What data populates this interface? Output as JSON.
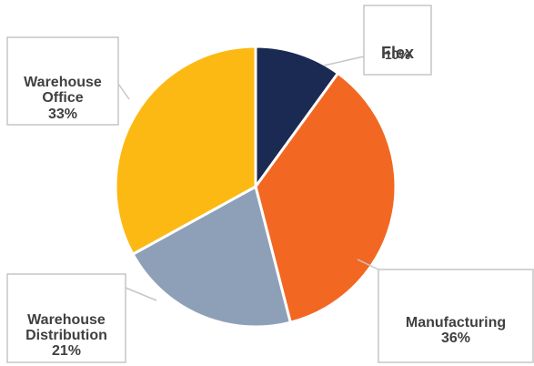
{
  "chart_data": {
    "type": "pie",
    "title": "",
    "slices": [
      {
        "label": "Flex",
        "display_label": [
          "Flex"
        ],
        "value": 10,
        "value_text": "10%",
        "color": "#1b2a52"
      },
      {
        "label": "Manufacturing",
        "display_label": [
          "Manufacturing"
        ],
        "value": 36,
        "value_text": "36%",
        "color": "#f26722"
      },
      {
        "label": "Warehouse Distribution",
        "display_label": [
          "Warehouse",
          "Distribution"
        ],
        "value": 21,
        "value_text": "21%",
        "color": "#8ea0b8"
      },
      {
        "label": "Warehouse Office",
        "display_label": [
          "Warehouse",
          "Office"
        ],
        "value": 33,
        "value_text": "33%",
        "color": "#fdb913"
      }
    ]
  }
}
